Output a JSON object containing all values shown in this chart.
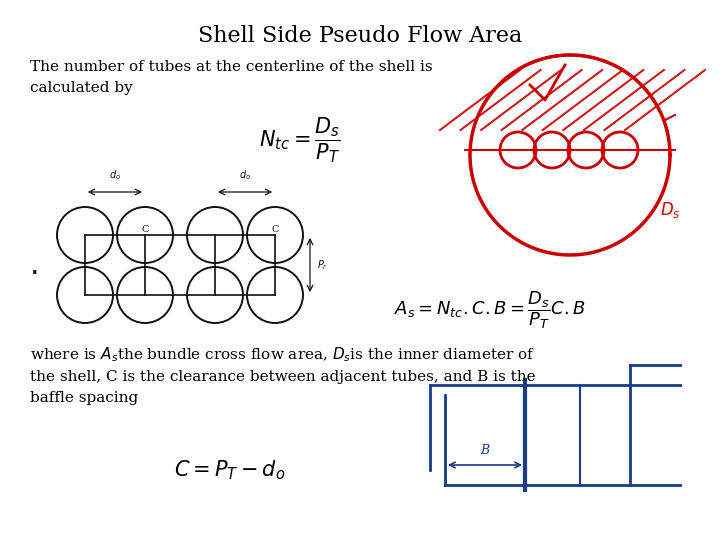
{
  "title": "Shell Side Pseudo Flow Area",
  "title_fontsize": 16,
  "background_color": "#ffffff",
  "text_color": "#000000",
  "red_color": "#cc0000",
  "dark_color": "#111111",
  "blue_color": "#1a3a8a",
  "body_text_1": "The number of tubes at the centerline of the shell is\ncalculated by",
  "formula_1": "$N_{tc} = \\dfrac{D_s}{P_T}$",
  "formula_2": "$A_s = N_{tc}.C.B = \\dfrac{D_s}{P_T}C.B$",
  "body_text_2": "where is $A_s$the bundle cross flow area, $D_s$is the inner diameter of\nthe shell, C is the clearance between adjacent tubes, and B is the\nbaffle spacing",
  "formula_3": "$C = P_T - d_o$"
}
